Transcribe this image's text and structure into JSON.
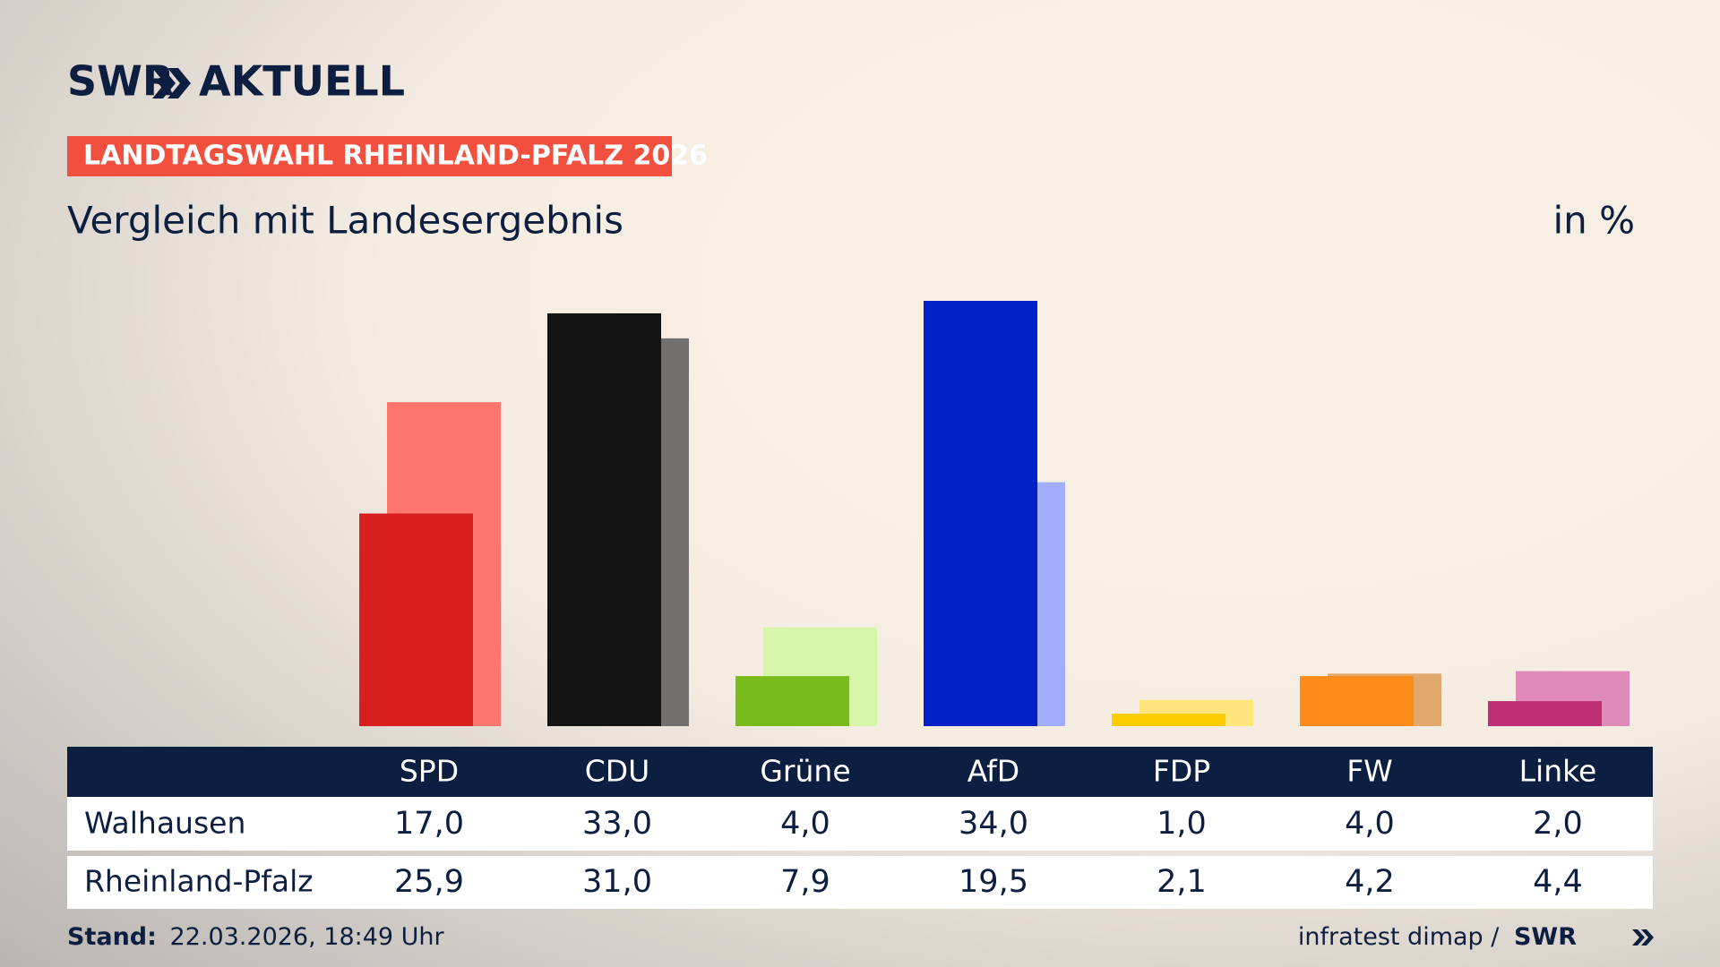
{
  "header": {
    "brand": "SWR",
    "brand_suffix": "AKTUELL",
    "tag": "LANDTAGSWAHL RHEINLAND-PFALZ 2026"
  },
  "chart_data": {
    "type": "bar",
    "title": "Vergleich mit Landesergebnis",
    "unit": "in %",
    "categories": [
      "SPD",
      "CDU",
      "Grüne",
      "AfD",
      "FDP",
      "FW",
      "Linke"
    ],
    "series": [
      {
        "name": "Walhausen",
        "values": [
          17.0,
          33.0,
          4.0,
          34.0,
          1.0,
          4.0,
          2.0
        ],
        "value_labels": [
          "17,0",
          "33,0",
          "4,0",
          "34,0",
          "1,0",
          "4,0",
          "2,0"
        ],
        "colors": [
          "#d71f1f",
          "#141414",
          "#79bb1a",
          "#0021c8",
          "#ffcd00",
          "#ff8c1a",
          "#be2f75"
        ]
      },
      {
        "name": "Rheinland-Pfalz",
        "values": [
          25.9,
          31.0,
          7.9,
          19.5,
          2.1,
          4.2,
          4.4
        ],
        "value_labels": [
          "25,9",
          "31,0",
          "7,9",
          "19,5",
          "2,1",
          "4,2",
          "4,4"
        ],
        "colors": [
          "#ff766c",
          "#727170",
          "#d7f5a9",
          "#a1aefd",
          "#ffe57a",
          "#e2a96f",
          "#df8ab8"
        ]
      }
    ]
  },
  "footer": {
    "stand_label": "Stand:",
    "stand": "22.03.2026, 18:49 Uhr",
    "source": "infratest dimap /",
    "source_brand": "SWR"
  }
}
